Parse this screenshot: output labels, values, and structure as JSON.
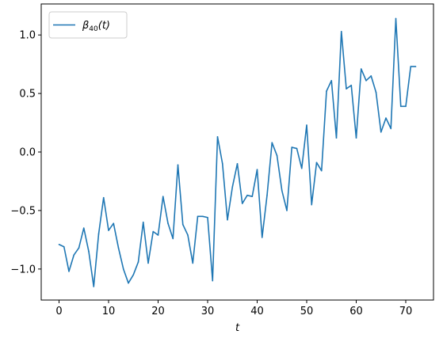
{
  "chart_data": {
    "type": "line",
    "title": "",
    "xlabel": "t",
    "ylabel": "",
    "xlim": [
      -3.6,
      75.6
    ],
    "ylim": [
      -1.265,
      1.265
    ],
    "xticks": [
      0,
      10,
      20,
      30,
      40,
      50,
      60,
      70
    ],
    "yticks": [
      -1.0,
      -0.5,
      0.0,
      0.5,
      1.0
    ],
    "xtick_labels": [
      "0",
      "10",
      "20",
      "30",
      "40",
      "50",
      "60",
      "70"
    ],
    "ytick_labels": [
      "−1.0",
      "−0.5",
      "0.0",
      "0.5",
      "1.0"
    ],
    "grid": false,
    "legend_position": "top-left",
    "series": [
      {
        "name": "β40(t)",
        "legend_main": "β",
        "legend_sub": "40",
        "legend_tail": "(t)",
        "color": "#1f77b4",
        "x": [
          0,
          1,
          2,
          3,
          4,
          5,
          6,
          7,
          8,
          9,
          10,
          11,
          12,
          13,
          14,
          15,
          16,
          17,
          18,
          19,
          20,
          21,
          22,
          23,
          24,
          25,
          26,
          27,
          28,
          29,
          30,
          31,
          32,
          33,
          34,
          35,
          36,
          37,
          38,
          39,
          40,
          41,
          42,
          43,
          44,
          45,
          46,
          47,
          48,
          49,
          50,
          51,
          52,
          53,
          54,
          55,
          56,
          57,
          58,
          59,
          60,
          61,
          62,
          63,
          64,
          65,
          66,
          67,
          68,
          69,
          70,
          71,
          72
        ],
        "values": [
          -0.79,
          -0.81,
          -1.02,
          -0.88,
          -0.82,
          -0.65,
          -0.85,
          -1.15,
          -0.7,
          -0.39,
          -0.67,
          -0.61,
          -0.82,
          -1.0,
          -1.12,
          -1.05,
          -0.94,
          -0.6,
          -0.95,
          -0.68,
          -0.71,
          -0.38,
          -0.61,
          -0.74,
          -0.11,
          -0.62,
          -0.71,
          -0.95,
          -0.55,
          -0.55,
          -0.56,
          -1.1,
          0.13,
          -0.1,
          -0.58,
          -0.3,
          -0.1,
          -0.44,
          -0.37,
          -0.38,
          -0.15,
          -0.73,
          -0.37,
          0.08,
          -0.03,
          -0.33,
          -0.5,
          0.04,
          0.03,
          -0.14,
          0.23,
          -0.45,
          -0.09,
          -0.16,
          0.52,
          0.61,
          0.12,
          1.03,
          0.54,
          0.57,
          0.12,
          0.71,
          0.61,
          0.65,
          0.51,
          0.17,
          0.29,
          0.2,
          1.14,
          0.39,
          0.39,
          0.73,
          0.73
        ]
      }
    ]
  }
}
